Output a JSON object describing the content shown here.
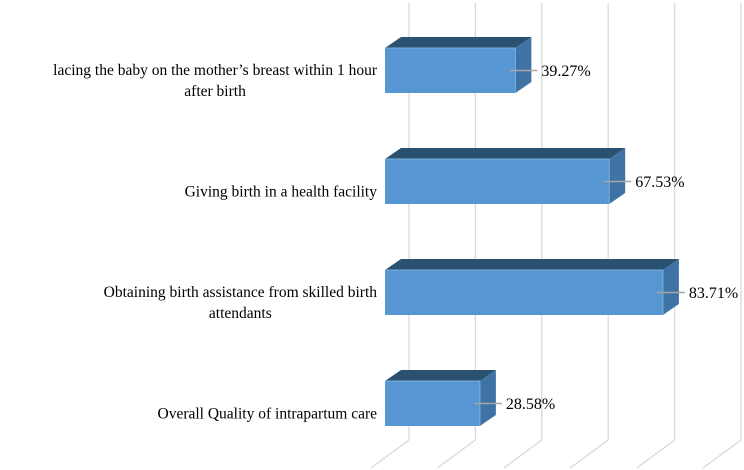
{
  "figure": {
    "background": "#ffffff",
    "title": ""
  },
  "chart_data": {
    "type": "bar",
    "orientation": "horizontal",
    "style": "3d",
    "title": "",
    "xlabel": "",
    "ylabel": "",
    "categories": [
      "lacing the baby on the mother’s breast within 1 hour\nafter birth",
      "Giving birth in a health facility",
      "Obtaining birth assistance from skilled birth\nattendants",
      "Overall Quality of intrapartum care"
    ],
    "values": [
      39.27,
      67.53,
      83.71,
      28.58
    ],
    "value_labels": [
      "39.27%",
      "67.53%",
      "83.71%",
      "28.58%"
    ],
    "xlim": [
      0,
      100
    ],
    "gridline_step_pct": 20,
    "grid": true,
    "legend": false,
    "axis_tick_labels_visible": false,
    "colors": {
      "bar_front": "#5596D3",
      "bar_top": "#2A5170",
      "bar_side": "#3F73A5",
      "bar_edge_highlight": "#7FB0DD",
      "gridline": "#D9D9D9",
      "leader_line": "#A6A6A6",
      "label_text": "#000000"
    }
  }
}
